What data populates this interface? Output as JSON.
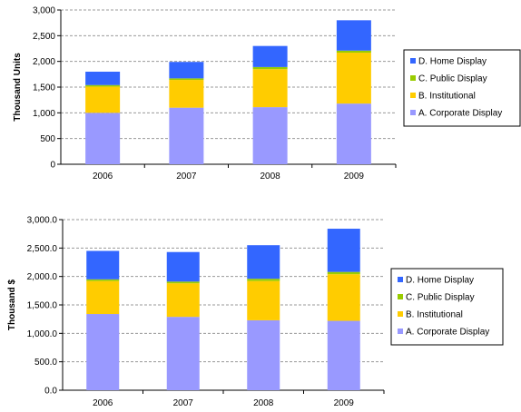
{
  "colors": {
    "corporate": "#9999ff",
    "institutional": "#ffcc00",
    "public": "#99cc00",
    "home": "#3366ff"
  },
  "chart_data": [
    {
      "type": "bar",
      "stacked": true,
      "ylabel": "Thousand Units",
      "ylim": [
        0,
        3000
      ],
      "yticks": [
        "0",
        "500",
        "1,000",
        "1,500",
        "2,000",
        "2,500",
        "3,000"
      ],
      "categories": [
        "2006",
        "2007",
        "2008",
        "2009"
      ],
      "grid": true,
      "legend_position": "right",
      "legend": [
        "D. Home Display",
        "C. Public Display",
        "B. Institutional",
        "A. Corporate Display"
      ],
      "series": [
        {
          "name": "A. Corporate Display",
          "color_key": "corporate",
          "values": [
            1000,
            1100,
            1110,
            1180
          ]
        },
        {
          "name": "B. Institutional",
          "color_key": "institutional",
          "values": [
            510,
            540,
            740,
            990
          ]
        },
        {
          "name": "C. Public Display",
          "color_key": "public",
          "values": [
            30,
            30,
            40,
            40
          ]
        },
        {
          "name": "D. Home Display",
          "color_key": "home",
          "values": [
            260,
            320,
            410,
            590
          ]
        }
      ]
    },
    {
      "type": "bar",
      "stacked": true,
      "ylabel": "Thousand $",
      "ylim": [
        0,
        3000
      ],
      "yticks": [
        "0.0",
        "500.0",
        "1,000.0",
        "1,500.0",
        "2,000.0",
        "2,500.0",
        "3,000.0"
      ],
      "categories": [
        "2006",
        "2007",
        "2008",
        "2009"
      ],
      "grid": true,
      "legend_position": "right",
      "legend": [
        "D. Home Display",
        "C. Public Display",
        "B. Institutional",
        "A. Corporate Display"
      ],
      "series": [
        {
          "name": "A. Corporate Display",
          "color_key": "corporate",
          "values": [
            1340,
            1290,
            1230,
            1220
          ]
        },
        {
          "name": "B. Institutional",
          "color_key": "institutional",
          "values": [
            580,
            590,
            690,
            820
          ]
        },
        {
          "name": "C. Public Display",
          "color_key": "public",
          "values": [
            30,
            30,
            40,
            40
          ]
        },
        {
          "name": "D. Home Display",
          "color_key": "home",
          "values": [
            500,
            520,
            590,
            760
          ]
        }
      ]
    }
  ]
}
